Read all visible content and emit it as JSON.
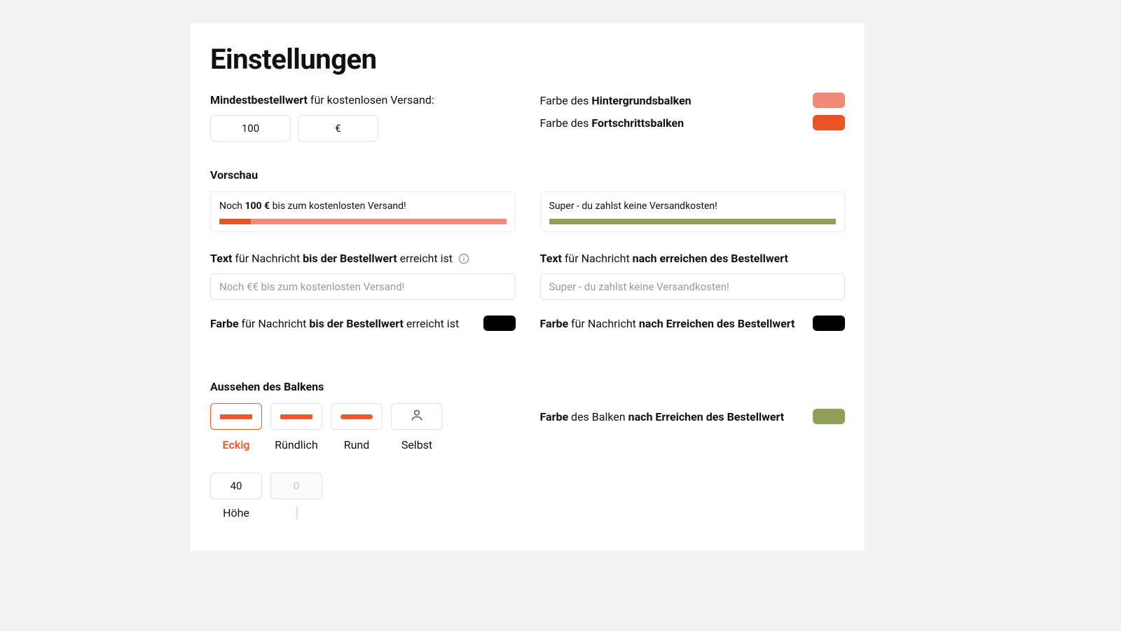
{
  "title": "Einstellungen",
  "min_order": {
    "label_prefix": "Mindestbestellwert",
    "label_suffix": " für kostenlosen Versand:",
    "value": "100",
    "currency": "€"
  },
  "bg_bar": {
    "label_prefix": "Farbe des ",
    "label_bold": "Hintergrundsbalken",
    "color": "#ef8a76"
  },
  "fg_bar": {
    "label_prefix": "Farbe des ",
    "label_bold": "Fortschrittsbalken",
    "color": "#e85426"
  },
  "preview": {
    "title": "Vorschau",
    "left": {
      "text_pre": "Noch ",
      "text_bold": "100 €",
      "text_post": " bis zum kostenlosten Versand!",
      "track_color": "#ef8a76",
      "fill_color": "#e85426",
      "fill_pct": 11
    },
    "right": {
      "text": "Super - du zahlst keine Versandkosten!",
      "track_color": "#8f9f5b",
      "fill_color": "#8f9f5b",
      "fill_pct": 100
    }
  },
  "msg_before": {
    "label_bold1": "Text",
    "label_mid": " für Nachricht ",
    "label_bold2": "bis der Bestellwert",
    "label_end": " erreicht ist",
    "placeholder": "Noch €€ bis zum kostenlosten Versand!",
    "color_label_bold1": "Farbe",
    "color_label_mid": " für Nachricht ",
    "color_label_bold2": "bis der Bestellwert",
    "color_label_end": " erreicht ist",
    "color": "#000000"
  },
  "msg_after": {
    "label_bold1": "Text",
    "label_mid": " für Nachricht ",
    "label_bold2": "nach erreichen des Bestellwert",
    "placeholder": "Super - du zahlst keine Versandkosten!",
    "color_label_bold1": "Farbe",
    "color_label_mid": " für Nachricht ",
    "color_label_bold2": "nach Erreichen des Bestellwert",
    "color": "#000000"
  },
  "appearance": {
    "title": "Aussehen des Balkens",
    "options": [
      {
        "label": "Eckig",
        "radius": 0,
        "selected": true
      },
      {
        "label": "Ründlich",
        "radius": 2,
        "selected": false
      },
      {
        "label": "Rund",
        "radius": 4,
        "selected": false
      },
      {
        "label": "Selbst",
        "radius": 0,
        "selected": false,
        "icon": "user"
      }
    ],
    "bar_color": "#ea5a2e",
    "height": {
      "value": "40",
      "label": "Höhe"
    },
    "second": {
      "value": "0"
    }
  },
  "complete_bar": {
    "label_bold1": "Farbe",
    "label_mid": " des Balken ",
    "label_bold2": "nach Erreichen des Bestellwert",
    "color": "#8f9f5b"
  }
}
